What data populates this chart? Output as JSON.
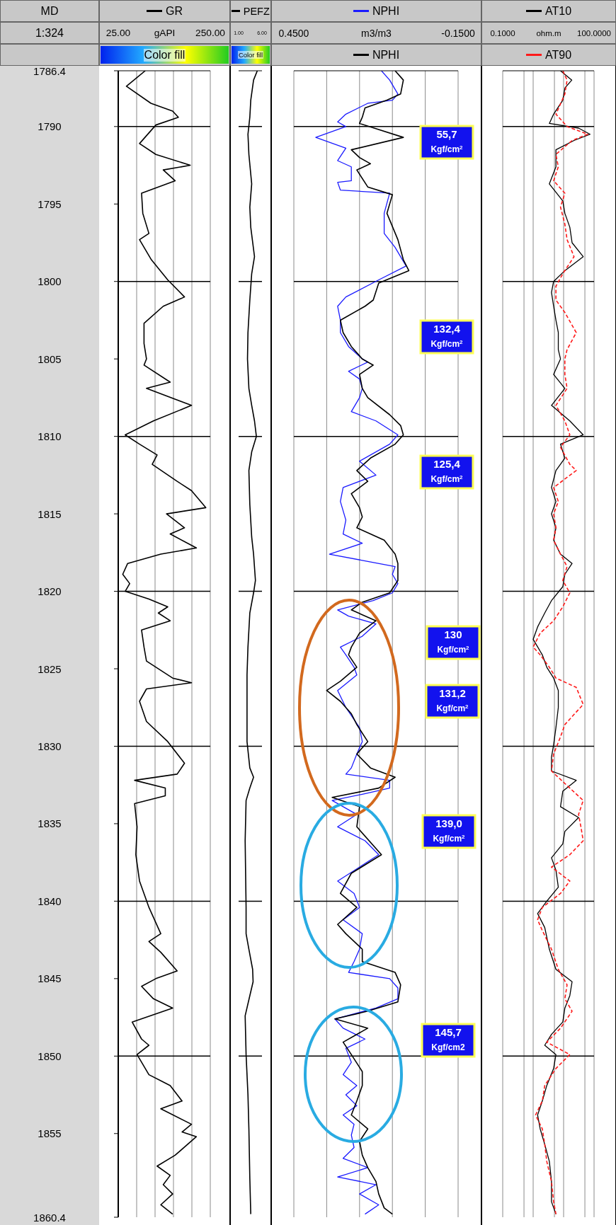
{
  "chart_data": [
    {
      "type": "line",
      "orientation": "horizontal",
      "ylabel": "MD",
      "xlabel": "gAPI",
      "legend": "top",
      "grid": "x",
      "xlim": [
        25,
        250
      ],
      "xticks": [
        {
          "value": 25,
          "label": "25.00"
        },
        {
          "value": 70,
          "label": null
        },
        {
          "value": 115,
          "label": null
        },
        {
          "value": 160,
          "label": null
        },
        {
          "value": 205,
          "label": null
        },
        {
          "value": 250,
          "label": "250.00"
        }
      ],
      "ylim": [
        1860.4,
        1786.4
      ],
      "yticks": [
        1786.4,
        1790,
        1795,
        1800,
        1805,
        1810,
        1815,
        1820,
        1825,
        1830,
        1835,
        1840,
        1845,
        1850,
        1855,
        1860.4
      ],
      "annotations": [
        "1:324",
        "Color fill"
      ],
      "ref_lines": [
        {
          "axis": "y",
          "value": 1790,
          "color": "#000000"
        },
        {
          "axis": "y",
          "value": 1800,
          "color": "#000000"
        },
        {
          "axis": "y",
          "value": 1810,
          "color": "#000000"
        },
        {
          "axis": "y",
          "value": 1820,
          "color": "#000000"
        },
        {
          "axis": "y",
          "value": 1830,
          "color": "#000000"
        },
        {
          "axis": "y",
          "value": 1840,
          "color": "#000000"
        },
        {
          "axis": "y",
          "value": 1850,
          "color": "#000000"
        }
      ],
      "series": [
        {
          "name": "GR",
          "color": "#000000",
          "x": [
            1786.4,
            1787.4,
            1788.5,
            1789.0,
            1789.4,
            1789.9,
            1791.1,
            1791.8,
            1792.5,
            1792.8,
            1793.5,
            1794.3,
            1795.6,
            1796.9,
            1797.3,
            1798.6,
            1799.9,
            1801.0,
            1801.6,
            1802.7,
            1804.0,
            1805.0,
            1805.4,
            1806.5,
            1806.9,
            1808.0,
            1809.0,
            1809.9,
            1810.5,
            1811.2,
            1811.8,
            1812.9,
            1813.5,
            1814.6,
            1815.0,
            1815.9,
            1816.3,
            1817.2,
            1817.6,
            1818.2,
            1818.9,
            1819.5,
            1820.0,
            1820.5,
            1821.0,
            1821.4,
            1821.9,
            1822.5,
            1823.6,
            1824.5,
            1825.6,
            1825.9,
            1826.3,
            1827.1,
            1828.4,
            1829.7,
            1831.1,
            1831.8,
            1832.2,
            1832.7,
            1833.2,
            1833.7,
            1835.2,
            1837.0,
            1838.7,
            1840.4,
            1842.1,
            1842.6,
            1843.3,
            1844.5,
            1845.0,
            1845.5,
            1846.3,
            1846.9,
            1847.8,
            1848.9,
            1849.3,
            1849.9,
            1851.2,
            1851.9,
            1852.9,
            1853.4,
            1854.4,
            1854.9,
            1855.2,
            1856.4,
            1857.1,
            1857.7,
            1858.3,
            1858.9,
            1859.6,
            1860.2
          ],
          "values": [
            91,
            45,
            105,
            158,
            172,
            117,
            77,
            117,
            201,
            135,
            164,
            82,
            85,
            100,
            77,
            106,
            146,
            187,
            135,
            88,
            88,
            94,
            88,
            152,
            94,
            204,
            111,
            42,
            77,
            120,
            108,
            169,
            204,
            239,
            143,
            187,
            152,
            216,
            129,
            48,
            36,
            53,
            42,
            100,
            146,
            123,
            152,
            82,
            88,
            94,
            158,
            204,
            94,
            77,
            94,
            146,
            187,
            169,
            65,
            140,
            140,
            65,
            71,
            68,
            77,
            100,
            129,
            100,
            129,
            169,
            117,
            82,
            111,
            158,
            59,
            82,
            100,
            71,
            100,
            152,
            181,
            129,
            204,
            181,
            216,
            164,
            120,
            152,
            135,
            158,
            129,
            158
          ]
        }
      ]
    },
    {
      "type": "line",
      "orientation": "horizontal",
      "legend": "top",
      "tick_labels": "x",
      "xlim": [
        1,
        6
      ],
      "xticks": [
        {
          "value": 1,
          "label": "1.00"
        },
        {
          "value": 6,
          "label": "6.00"
        }
      ],
      "ylim": [
        1860.4,
        1786.4
      ],
      "yticks": [
        1786.4,
        1790,
        1795,
        1800,
        1805,
        1810,
        1815,
        1820,
        1825,
        1830,
        1835,
        1840,
        1845,
        1850,
        1855,
        1860.4
      ],
      "annotations": [
        "Color fill"
      ],
      "ref_lines": [
        {
          "axis": "y",
          "value": 1790,
          "color": "#000000"
        },
        {
          "axis": "y",
          "value": 1800,
          "color": "#000000"
        },
        {
          "axis": "y",
          "value": 1810,
          "color": "#000000"
        },
        {
          "axis": "y",
          "value": 1820,
          "color": "#000000"
        },
        {
          "axis": "y",
          "value": 1830,
          "color": "#000000"
        },
        {
          "axis": "y",
          "value": 1840,
          "color": "#000000"
        },
        {
          "axis": "y",
          "value": 1850,
          "color": "#000000"
        }
      ],
      "series": [
        {
          "name": "PEFZ",
          "color": "#000000",
          "x": [
            1786.4,
            1787.0,
            1788.3,
            1789.4,
            1790.5,
            1791.8,
            1793.7,
            1795.2,
            1796.5,
            1798.4,
            1799.5,
            1801.2,
            1803.3,
            1805.0,
            1806.9,
            1808.0,
            1809.0,
            1810.0,
            1811.0,
            1812.2,
            1814.4,
            1816.5,
            1817.6,
            1819.3,
            1820.1,
            1821.4,
            1823.6,
            1825.4,
            1829.7,
            1831.4,
            1832.0,
            1832.7,
            1833.5,
            1836.1,
            1840.4,
            1842.1,
            1843.1,
            1844.4,
            1845.2,
            1846.1,
            1847.4,
            1849.9,
            1852.5,
            1854.7,
            1857.9,
            1860.2
          ],
          "values": [
            5.0,
            4.2,
            3.6,
            3.4,
            3.0,
            3.2,
            3.8,
            3.4,
            3.6,
            4.4,
            3.8,
            3.4,
            3.0,
            2.9,
            3.2,
            3.8,
            4.4,
            4.8,
            3.8,
            3.2,
            3.4,
            3.8,
            4.2,
            4.6,
            4.2,
            3.4,
            3.0,
            2.8,
            2.8,
            3.4,
            4.2,
            3.4,
            2.6,
            2.4,
            2.6,
            2.6,
            3.2,
            4.0,
            4.1,
            3.4,
            2.4,
            2.6,
            3.0,
            3.2,
            3.4,
            3.6
          ]
        }
      ]
    },
    {
      "type": "line",
      "orientation": "horizontal",
      "legend": "top",
      "tick_labels": "x",
      "grid": "x",
      "xlabel": "m3/m3",
      "xlim": [
        0.45,
        -0.15
      ],
      "xticks": [
        {
          "value": 0.45,
          "label": "0.4500"
        },
        {
          "value": 0.33,
          "label": null
        },
        {
          "value": 0.21,
          "label": null
        },
        {
          "value": 0.09,
          "label": null
        },
        {
          "value": -0.03,
          "label": null
        },
        {
          "value": -0.15,
          "label": "-0.1500"
        }
      ],
      "ylim": [
        1860.4,
        1786.4
      ],
      "yticks": [
        1786.4,
        1790,
        1795,
        1800,
        1805,
        1810,
        1815,
        1820,
        1825,
        1830,
        1835,
        1840,
        1845,
        1850,
        1855,
        1860.4
      ],
      "annotations": [
        "55,7 Kgf/cm$^{2}$",
        "132,4 Kgf/cm$^{2}$",
        "125,4 Kgf/cm$^{2}$",
        "130 Kgf/cm$^{2}$",
        "131,2 Kgf/cm$^{2}$",
        "139,0 Kgf/cm$^{2}$",
        "145,7 Kgf/cm2"
      ],
      "ref_lines": [
        {
          "axis": "y",
          "value": 1790,
          "color": "#000000"
        },
        {
          "axis": "y",
          "value": 1800,
          "color": "#000000"
        },
        {
          "axis": "y",
          "value": 1810,
          "color": "#000000"
        },
        {
          "axis": "y",
          "value": 1820,
          "color": "#000000"
        },
        {
          "axis": "y",
          "value": 1830,
          "color": "#000000"
        },
        {
          "axis": "y",
          "value": 1840,
          "color": "#000000"
        },
        {
          "axis": "y",
          "value": 1850,
          "color": "#000000"
        }
      ],
      "series": [
        {
          "name": "NPHI",
          "color": "#1a1aff",
          "x": [
            1786.4,
            1787.0,
            1787.9,
            1788.3,
            1788.5,
            1789.2,
            1789.7,
            1790.0,
            1790.7,
            1791.4,
            1792.2,
            1792.6,
            1793.5,
            1793.6,
            1794.1,
            1794.3,
            1795.6,
            1796.9,
            1797.8,
            1799.0,
            1799.9,
            1801.0,
            1801.6,
            1802.5,
            1803.3,
            1804.2,
            1805.0,
            1805.2,
            1805.8,
            1806.3,
            1806.9,
            1807.5,
            1808.4,
            1809.0,
            1809.9,
            1810.5,
            1811.6,
            1812.5,
            1813.3,
            1814.2,
            1815.4,
            1816.3,
            1816.9,
            1817.6,
            1818.0,
            1818.4,
            1818.9,
            1819.5,
            1820.1,
            1820.6,
            1821.2,
            1821.6,
            1822.1,
            1822.9,
            1823.6,
            1824.1,
            1824.9,
            1825.4,
            1826.4,
            1827.5,
            1828.8,
            1829.7,
            1830.5,
            1831.4,
            1831.8,
            1832.2,
            1832.7,
            1833.1,
            1833.5,
            1834.4,
            1835.2,
            1836.1,
            1837.0,
            1837.8,
            1838.7,
            1839.5,
            1840.4,
            1841.2,
            1842.1,
            1843.1,
            1843.9,
            1844.6,
            1845.0,
            1845.6,
            1846.3,
            1846.9,
            1847.6,
            1848.2,
            1848.9,
            1849.5,
            1850.4,
            1851.2,
            1851.9,
            1852.5,
            1853.2,
            1853.8,
            1854.4,
            1855.1,
            1855.9,
            1856.6,
            1857.2,
            1857.8,
            1858.3,
            1858.9,
            1859.6,
            1860.2
          ],
          "values": [
            0.13,
            0.1,
            0.07,
            0.09,
            0.18,
            0.26,
            0.29,
            0.26,
            0.37,
            0.26,
            0.29,
            0.24,
            0.24,
            0.29,
            0.28,
            0.1,
            0.12,
            0.12,
            0.08,
            0.04,
            0.14,
            0.26,
            0.29,
            0.28,
            0.28,
            0.25,
            0.2,
            0.18,
            0.25,
            0.21,
            0.2,
            0.21,
            0.24,
            0.15,
            0.07,
            0.1,
            0.21,
            0.15,
            0.27,
            0.28,
            0.26,
            0.27,
            0.2,
            0.32,
            0.2,
            0.08,
            0.09,
            0.07,
            0.09,
            0.16,
            0.29,
            0.25,
            0.15,
            0.2,
            0.28,
            0.26,
            0.23,
            0.22,
            0.29,
            0.26,
            0.21,
            0.2,
            0.22,
            0.24,
            0.26,
            0.1,
            0.1,
            0.2,
            0.31,
            0.22,
            0.29,
            0.19,
            0.14,
            0.21,
            0.29,
            0.23,
            0.21,
            0.27,
            0.2,
            0.21,
            0.23,
            0.25,
            0.1,
            0.07,
            0.07,
            0.15,
            0.3,
            0.27,
            0.19,
            0.26,
            0.24,
            0.27,
            0.22,
            0.26,
            0.22,
            0.27,
            0.23,
            0.24,
            0.23,
            0.27,
            0.18,
            0.29,
            0.15,
            0.21,
            0.14,
            0.19
          ]
        },
        {
          "name": "NPHI",
          "color": "#000000",
          "x": [
            1786.4,
            1787.0,
            1787.9,
            1788.3,
            1788.8,
            1789.4,
            1789.8,
            1790.7,
            1791.5,
            1792.0,
            1792.4,
            1792.8,
            1793.9,
            1794.4,
            1795.6,
            1797.3,
            1798.6,
            1799.3,
            1800.1,
            1801.2,
            1801.6,
            1802.5,
            1803.3,
            1804.2,
            1805.0,
            1805.4,
            1806.0,
            1806.9,
            1807.5,
            1808.6,
            1809.3,
            1809.9,
            1810.5,
            1811.4,
            1812.2,
            1812.9,
            1813.7,
            1814.6,
            1815.2,
            1815.9,
            1816.7,
            1817.6,
            1818.2,
            1819.3,
            1820.1,
            1820.7,
            1821.2,
            1821.9,
            1822.7,
            1823.6,
            1824.1,
            1824.9,
            1825.8,
            1826.4,
            1827.1,
            1827.9,
            1828.6,
            1829.7,
            1830.5,
            1831.4,
            1832.0,
            1832.7,
            1833.3,
            1833.9,
            1835.2,
            1837.0,
            1838.2,
            1839.5,
            1840.4,
            1841.5,
            1842.1,
            1843.1,
            1843.9,
            1844.6,
            1845.4,
            1846.5,
            1847.1,
            1847.6,
            1848.2,
            1849.1,
            1849.9,
            1851.0,
            1851.9,
            1852.9,
            1853.8,
            1854.7,
            1855.5,
            1856.4,
            1857.2,
            1858.1,
            1858.9,
            1859.8,
            1860.2
          ],
          "values": [
            0.08,
            0.05,
            0.06,
            0.11,
            0.19,
            0.2,
            0.21,
            0.05,
            0.24,
            0.21,
            0.17,
            0.22,
            0.18,
            0.09,
            0.11,
            0.07,
            0.05,
            0.03,
            0.14,
            0.16,
            0.19,
            0.28,
            0.27,
            0.24,
            0.2,
            0.16,
            0.21,
            0.2,
            0.18,
            0.1,
            0.06,
            0.05,
            0.08,
            0.17,
            0.22,
            0.18,
            0.24,
            0.21,
            0.2,
            0.22,
            0.12,
            0.08,
            0.07,
            0.07,
            0.1,
            0.2,
            0.24,
            0.15,
            0.21,
            0.24,
            0.25,
            0.22,
            0.28,
            0.33,
            0.28,
            0.24,
            0.22,
            0.18,
            0.22,
            0.17,
            0.08,
            0.14,
            0.31,
            0.21,
            0.22,
            0.13,
            0.24,
            0.28,
            0.22,
            0.29,
            0.26,
            0.2,
            0.2,
            0.08,
            0.06,
            0.07,
            0.18,
            0.3,
            0.18,
            0.27,
            0.24,
            0.2,
            0.2,
            0.22,
            0.24,
            0.18,
            0.21,
            0.2,
            0.18,
            0.15,
            0.14,
            0.12,
            0.09
          ]
        }
      ]
    },
    {
      "type": "line",
      "orientation": "horizontal",
      "legend": "top",
      "tick_labels": "x",
      "grid": "x",
      "log": "x",
      "xlabel": "ohm.m",
      "xlim": [
        0.1,
        100
      ],
      "xticks": [
        {
          "value": 0.1,
          "label": "0.1000"
        },
        {
          "value": 0.5,
          "label": null
        },
        {
          "value": 1,
          "label": null
        },
        {
          "value": 5,
          "label": null
        },
        {
          "value": 10,
          "label": null
        },
        {
          "value": 50,
          "label": null
        },
        {
          "value": 100,
          "label": "100.0000"
        }
      ],
      "ylim": [
        1860.4,
        1786.4
      ],
      "yticks": [
        1786.4,
        1790,
        1795,
        1800,
        1805,
        1810,
        1815,
        1820,
        1825,
        1830,
        1835,
        1840,
        1845,
        1850,
        1855,
        1860.4
      ],
      "ref_lines": [
        {
          "axis": "y",
          "value": 1790,
          "color": "#000000"
        },
        {
          "axis": "y",
          "value": 1800,
          "color": "#000000"
        },
        {
          "axis": "y",
          "value": 1810,
          "color": "#000000"
        },
        {
          "axis": "y",
          "value": 1820,
          "color": "#000000"
        },
        {
          "axis": "y",
          "value": 1830,
          "color": "#000000"
        },
        {
          "axis": "y",
          "value": 1840,
          "color": "#000000"
        },
        {
          "axis": "y",
          "value": 1850,
          "color": "#000000"
        }
      ],
      "series": [
        {
          "name": "AT10",
          "color": "#000000",
          "x": [
            1786.4,
            1787.0,
            1787.5,
            1788.3,
            1789.2,
            1789.8,
            1790.1,
            1790.5,
            1790.9,
            1791.5,
            1792.6,
            1793.7,
            1794.8,
            1795.6,
            1796.5,
            1797.5,
            1798.4,
            1799.3,
            1800.0,
            1800.7,
            1801.6,
            1802.5,
            1803.3,
            1804.4,
            1805.0,
            1806.0,
            1806.9,
            1808.0,
            1809.0,
            1809.9,
            1810.5,
            1811.4,
            1812.2,
            1813.3,
            1814.2,
            1815.0,
            1815.9,
            1816.7,
            1817.6,
            1818.2,
            1818.9,
            1819.7,
            1820.6,
            1821.4,
            1822.3,
            1823.1,
            1824.1,
            1824.9,
            1825.6,
            1826.4,
            1827.5,
            1828.8,
            1829.9,
            1830.7,
            1831.6,
            1832.2,
            1832.9,
            1833.9,
            1834.6,
            1835.5,
            1836.3,
            1837.2,
            1838.0,
            1839.1,
            1840.0,
            1840.8,
            1841.7,
            1843.1,
            1844.4,
            1845.2,
            1846.1,
            1846.9,
            1847.8,
            1848.6,
            1849.3,
            1849.9,
            1850.8,
            1851.9,
            1852.9,
            1853.8,
            1854.7,
            1855.7,
            1856.8,
            1858.1,
            1859.4,
            1860.2
          ],
          "values": [
            7.9,
            18.6,
            11.1,
            9.4,
            4.7,
            3.4,
            31,
            74,
            22,
            5.6,
            5.6,
            3.4,
            9.4,
            11,
            16,
            19,
            44,
            11,
            4.7,
            4.0,
            4.7,
            5.6,
            6.7,
            6.7,
            7.9,
            4.7,
            11,
            4.0,
            16,
            44,
            7.9,
            11,
            5.6,
            4.0,
            5.6,
            4.0,
            5.6,
            4.7,
            7.9,
            19,
            11,
            9.4,
            4.0,
            2.4,
            1.4,
            1.0,
            2.0,
            2.8,
            4.7,
            6.7,
            6.7,
            5.6,
            4.7,
            4.0,
            4.0,
            26,
            9.4,
            7.9,
            31,
            11,
            9.4,
            4.0,
            5.6,
            6.7,
            2.8,
            1.4,
            2.4,
            3.4,
            5.6,
            19,
            16,
            11,
            9.4,
            4.0,
            2.4,
            5.6,
            4.7,
            2.8,
            2.0,
            1.4,
            1.7,
            2.4,
            3.4,
            4.0,
            4.0,
            5.6
          ]
        },
        {
          "name": "AT90",
          "color": "#ff1a1a",
          "line_style": "dashed",
          "x": [
            1786.4,
            1787.0,
            1787.9,
            1789.2,
            1790.0,
            1790.5,
            1790.9,
            1791.8,
            1792.6,
            1793.5,
            1794.3,
            1795.2,
            1796.3,
            1797.3,
            1798.4,
            1799.5,
            1800.3,
            1801.2,
            1802.0,
            1803.3,
            1804.4,
            1805.0,
            1806.0,
            1806.9,
            1808.0,
            1809.0,
            1809.9,
            1810.7,
            1811.8,
            1812.2,
            1813.3,
            1814.2,
            1815.0,
            1815.9,
            1816.7,
            1817.6,
            1818.4,
            1819.3,
            1820.1,
            1821.0,
            1821.9,
            1822.7,
            1823.6,
            1824.1,
            1824.9,
            1825.6,
            1826.2,
            1827.3,
            1828.6,
            1829.4,
            1830.5,
            1831.6,
            1832.7,
            1833.5,
            1834.4,
            1835.2,
            1836.1,
            1837.0,
            1837.8,
            1838.7,
            1839.5,
            1840.4,
            1841.2,
            1841.9,
            1843.1,
            1844.4,
            1845.4,
            1846.3,
            1847.1,
            1848.2,
            1849.1,
            1849.9,
            1850.8,
            1851.9,
            1852.9,
            1853.8,
            1854.7,
            1855.7,
            1856.8,
            1858.1,
            1859.4,
            1860.2
          ],
          "values": [
            9.4,
            13,
            11,
            5.6,
            13,
            62,
            19,
            5.6,
            6.7,
            4.7,
            11,
            7.9,
            11,
            13,
            22,
            9.4,
            5.6,
            5.6,
            11,
            26,
            13,
            11,
            11,
            13,
            5.6,
            11,
            16,
            7.9,
            16,
            26,
            4.7,
            6.7,
            4.7,
            5.6,
            4.7,
            7.9,
            13,
            9.4,
            16,
            9.4,
            4.7,
            1.7,
            1.0,
            1.7,
            3.4,
            5.6,
            26,
            44,
            11,
            7.9,
            4.7,
            4.0,
            16,
            44,
            31,
            37,
            44,
            16,
            4.0,
            16,
            7.9,
            2.0,
            1.4,
            2.0,
            4.0,
            6.7,
            13,
            11,
            19,
            7.9,
            2.8,
            16,
            5.6,
            2.4,
            2.0,
            1.2,
            2.0,
            2.4,
            2.8,
            4.0,
            4.7,
            5.6
          ]
        }
      ]
    }
  ]
}
